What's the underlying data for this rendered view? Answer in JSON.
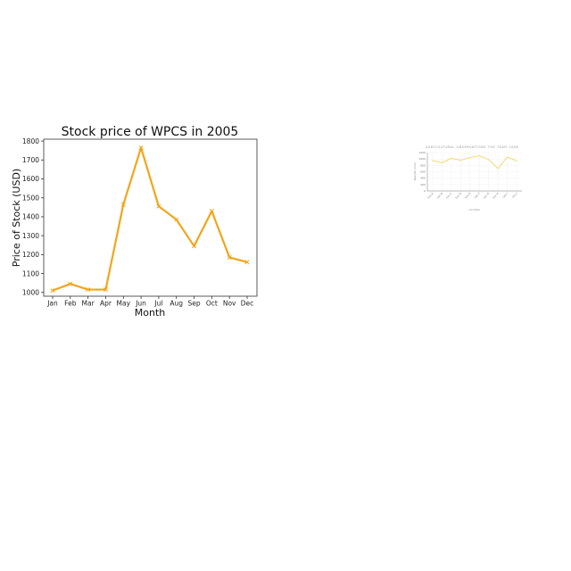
{
  "colors": {
    "series": "#f2a51a",
    "mini_series": "#f5d56a",
    "axis": "#333333",
    "grid": "#eeeeee"
  },
  "chart_data": [
    {
      "type": "line",
      "title": "Stock price of WPCS in 2005",
      "xlabel": "Month",
      "ylabel": "Price of Stock (USD)",
      "categories": [
        "Jan",
        "Feb",
        "Mar",
        "Apr",
        "May",
        "Jun",
        "Jul",
        "Aug",
        "Sep",
        "Oct",
        "Nov",
        "Dec"
      ],
      "values": [
        1010,
        1045,
        1015,
        1015,
        1465,
        1765,
        1455,
        1385,
        1245,
        1430,
        1185,
        1160
      ],
      "ylim": [
        980,
        1810
      ],
      "yticks": [
        1000,
        1100,
        1200,
        1300,
        1400,
        1500,
        1600,
        1700,
        1800
      ],
      "grid": false,
      "marker": "x"
    },
    {
      "type": "line",
      "title": "AGRICULTURAL OBSERVATIONS THE YEAR 1998",
      "xlabel": "Location",
      "ylabel": "Rainfall (mm)",
      "categories": [
        "Loc A",
        "Loc B",
        "Loc C",
        "Loc D",
        "Loc E",
        "Loc F",
        "Loc G",
        "Loc H",
        "Loc I",
        "Loc J"
      ],
      "values": [
        950,
        880,
        1020,
        960,
        1040,
        1100,
        980,
        700,
        1060,
        940
      ],
      "ylim": [
        0,
        1200
      ],
      "yticks": [
        0,
        200,
        400,
        600,
        800,
        1000,
        1200
      ],
      "grid": true
    }
  ]
}
